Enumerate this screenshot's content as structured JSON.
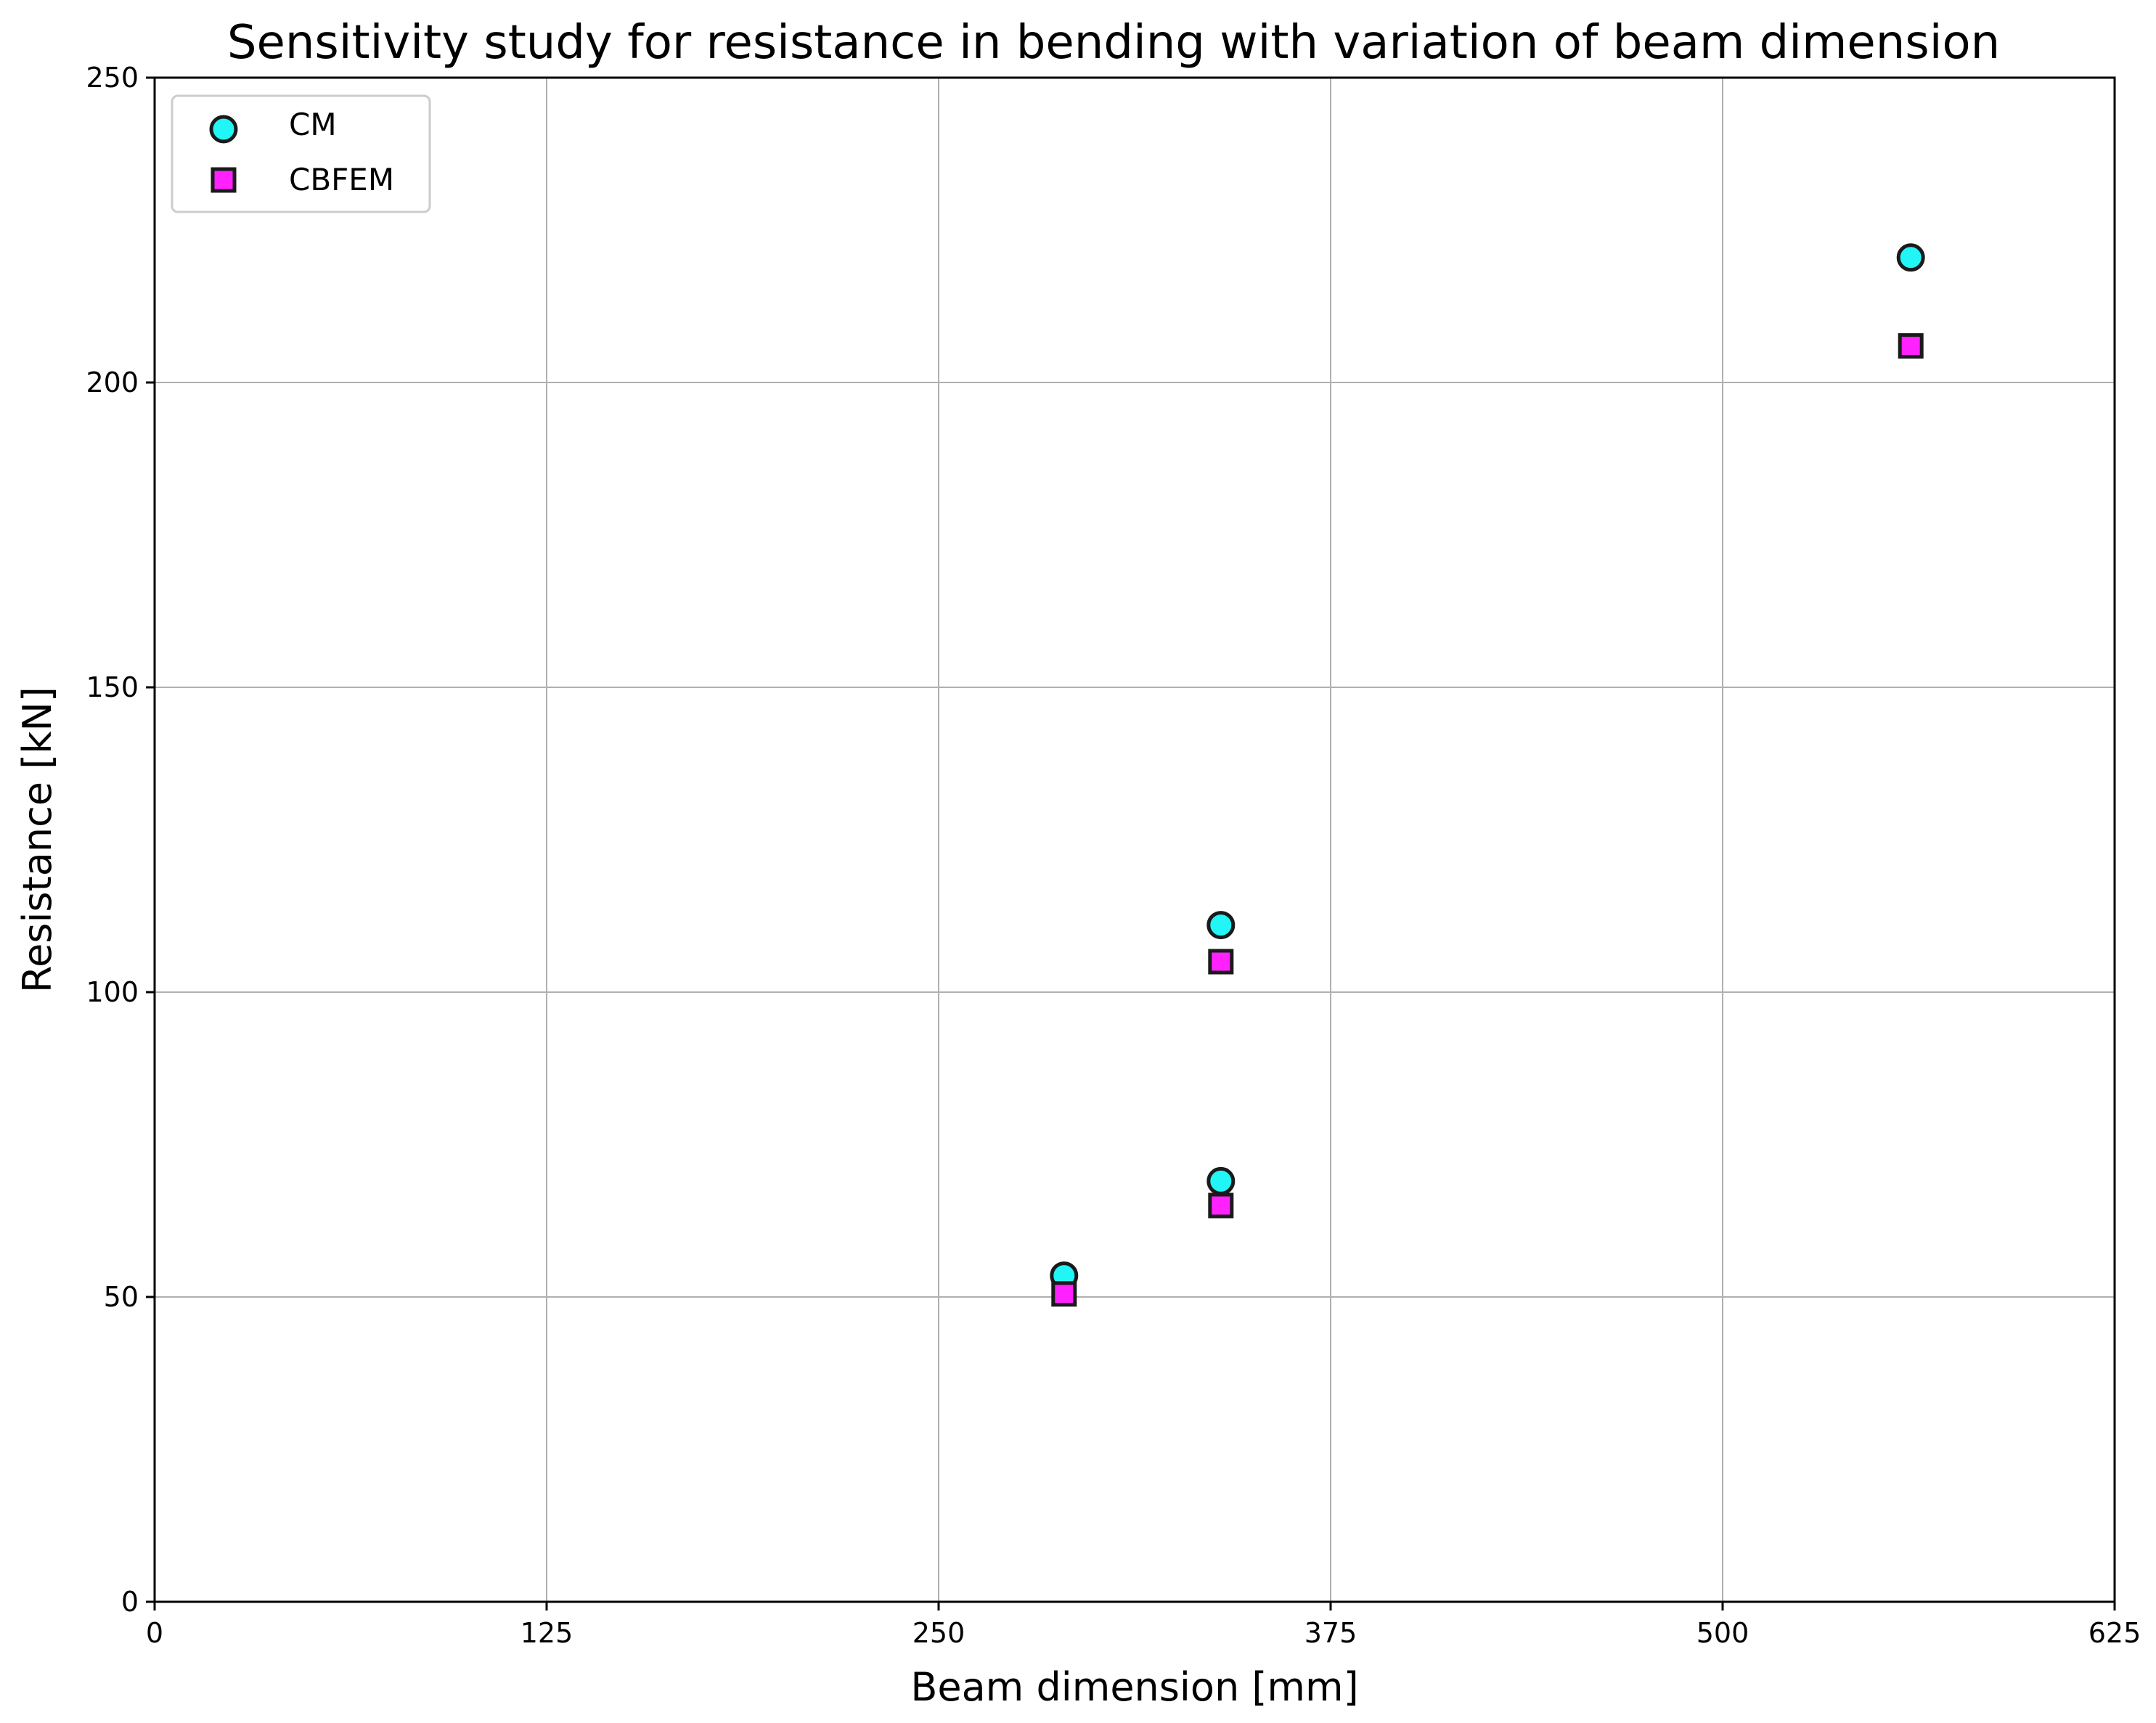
{
  "chart_data": {
    "type": "scatter",
    "title": "Sensitivity study for resistance in bending with variation of beam dimension",
    "xlabel": "Beam dimension [mm]",
    "ylabel": "Resistance [kN]",
    "xlim": [
      0,
      625
    ],
    "ylim": [
      0,
      250
    ],
    "xticks": [
      "0",
      "125",
      "250",
      "375",
      "500",
      "625"
    ],
    "xtick_values": [
      0,
      125,
      250,
      375,
      500,
      625
    ],
    "yticks": [
      "0",
      "50",
      "100",
      "150",
      "200",
      "250"
    ],
    "ytick_values": [
      0,
      50,
      100,
      150,
      200,
      250
    ],
    "grid": true,
    "legend_position": "top-left",
    "series": [
      {
        "name": "CM",
        "marker": "circle",
        "color": "#22f5f5",
        "edge_color": "#1a1a1a",
        "points": [
          {
            "x": 290,
            "y": 53.5
          },
          {
            "x": 340,
            "y": 69
          },
          {
            "x": 340,
            "y": 111
          },
          {
            "x": 560,
            "y": 220.5
          }
        ]
      },
      {
        "name": "CBFEM",
        "marker": "square",
        "color": "#ff22ff",
        "edge_color": "#1a1a1a",
        "points": [
          {
            "x": 290,
            "y": 50.5
          },
          {
            "x": 340,
            "y": 65
          },
          {
            "x": 340,
            "y": 105
          },
          {
            "x": 560,
            "y": 206
          }
        ]
      }
    ]
  }
}
